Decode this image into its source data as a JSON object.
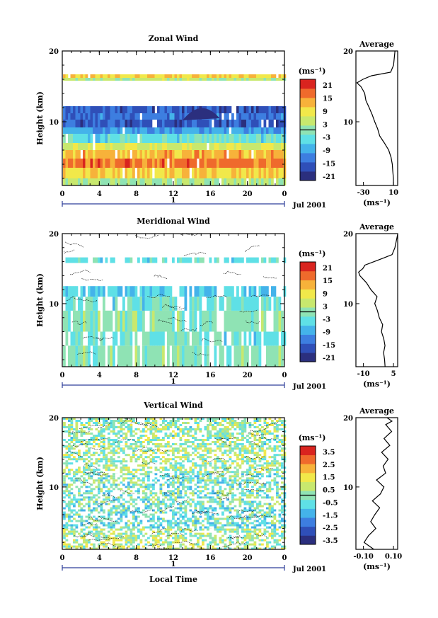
{
  "colors": {
    "wind_scale": [
      "#2b2f7e",
      "#2f4fb8",
      "#3d7ee0",
      "#44b3ea",
      "#5fe0e6",
      "#8fe3b4",
      "#c8e86e",
      "#f1e84a",
      "#f7b23a",
      "#ef6a2c",
      "#d9241f"
    ]
  },
  "panels": [
    {
      "title": "Zonal Wind",
      "ylabel": "Height (km)",
      "y_ticks": [
        "20",
        "10"
      ],
      "x_ticks": [
        "0",
        "4",
        "8",
        "12",
        "16",
        "20",
        "0"
      ],
      "xlabel": "",
      "day_label": "1",
      "month_label": "Jul 2001",
      "units_label": "(ms⁻¹)",
      "colorbar_ticks": [
        "21",
        "15",
        "9",
        "3",
        "-3",
        "-9",
        "-15",
        "-21"
      ],
      "avg_title": "Average",
      "avg_y_ticks": [
        "20",
        "10"
      ],
      "avg_x_ticks": [
        "-30",
        "10"
      ],
      "avg_units": "(ms⁻¹)"
    },
    {
      "title": "Meridional Wind",
      "ylabel": "Height (km)",
      "y_ticks": [
        "20",
        "10"
      ],
      "x_ticks": [
        "0",
        "4",
        "8",
        "12",
        "16",
        "20",
        "0"
      ],
      "xlabel": "",
      "day_label": "1",
      "month_label": "Jul 2001",
      "units_label": "(ms⁻¹)",
      "colorbar_ticks": [
        "21",
        "15",
        "9",
        "3",
        "-3",
        "-9",
        "-15",
        "-21"
      ],
      "avg_title": "Average",
      "avg_y_ticks": [
        "20",
        "10"
      ],
      "avg_x_ticks": [
        "-10",
        "5"
      ],
      "avg_units": "(ms⁻¹)"
    },
    {
      "title": "Vertical Wind",
      "ylabel": "Height (km)",
      "y_ticks": [
        "20",
        "10"
      ],
      "x_ticks": [
        "0",
        "4",
        "8",
        "12",
        "16",
        "20",
        "0"
      ],
      "xlabel": "Local Time",
      "day_label": "1",
      "month_label": "Jul 2001",
      "units_label": "(ms⁻¹)",
      "colorbar_ticks": [
        "3.5",
        "2.5",
        "1.5",
        "0.5",
        "-0.5",
        "-1.5",
        "-2.5",
        "-3.5"
      ],
      "avg_title": "Average",
      "avg_y_ticks": [
        "20",
        "10"
      ],
      "avg_x_ticks": [
        "-0.10",
        "0.10"
      ],
      "avg_units": "(ms⁻¹)"
    }
  ],
  "chart_data": [
    {
      "type": "heatmap",
      "title": "Zonal Wind",
      "xlabel": "",
      "ylabel": "Height (km)",
      "x_range_hours": [
        0,
        24
      ],
      "ylim": [
        1,
        20
      ],
      "color_scale": [
        -21,
        21
      ],
      "layers": [
        {
          "z_from": 1.0,
          "z_to": 2.0,
          "value": 2
        },
        {
          "z_from": 2.0,
          "z_to": 3.5,
          "value": 9
        },
        {
          "z_from": 3.5,
          "z_to": 4.8,
          "value": 15
        },
        {
          "z_from": 4.8,
          "z_to": 6.0,
          "value": 11
        },
        {
          "z_from": 6.0,
          "z_to": 7.0,
          "value": 5
        },
        {
          "z_from": 7.0,
          "z_to": 8.3,
          "value": -3
        },
        {
          "z_from": 8.3,
          "z_to": 9.2,
          "value": -9
        },
        {
          "z_from": 9.2,
          "z_to": 10.3,
          "value": -15
        },
        {
          "z_from": 10.3,
          "z_to": 11.2,
          "value": -12
        },
        {
          "z_from": 11.2,
          "z_to": 12.2,
          "value": -15
        },
        {
          "z_from": 15.8,
          "z_to": 16.2,
          "value": 3
        },
        {
          "z_from": 16.2,
          "z_to": 16.7,
          "value": 9
        }
      ],
      "average_profile": {
        "xlim": [
          -40,
          15
        ],
        "x": [
          10,
          9,
          8,
          8,
          7,
          3,
          -2,
          -8,
          -12,
          -15,
          -18,
          -22,
          -26,
          -28,
          -31,
          -34,
          -38,
          -30,
          -20,
          5,
          10,
          12
        ],
        "z": [
          1,
          2,
          3,
          4,
          5,
          6,
          7,
          8,
          9,
          10,
          11,
          12,
          13,
          14,
          14.5,
          15,
          15.5,
          16,
          16.5,
          17,
          18,
          20
        ]
      }
    },
    {
      "type": "heatmap",
      "title": "Meridional Wind",
      "xlabel": "",
      "ylabel": "Height (km)",
      "x_range_hours": [
        0,
        24
      ],
      "ylim": [
        1,
        20
      ],
      "color_scale": [
        -21,
        21
      ],
      "layers": [
        {
          "z_from": 1.0,
          "z_to": 4.0,
          "value": 0
        },
        {
          "z_from": 4.0,
          "z_to": 6.0,
          "value": -3
        },
        {
          "z_from": 6.0,
          "z_to": 9.0,
          "value": 0
        },
        {
          "z_from": 9.0,
          "z_to": 11.0,
          "value": -3
        },
        {
          "z_from": 11.0,
          "z_to": 12.5,
          "value": -6
        },
        {
          "z_from": 15.8,
          "z_to": 16.6,
          "value": -3
        }
      ],
      "average_profile": {
        "xlim": [
          -15,
          5
        ],
        "x": [
          -1,
          -1.5,
          -2,
          -1,
          -2,
          -3,
          -2,
          -4,
          -5,
          -6,
          -5,
          -8,
          -10,
          -13,
          -14,
          -12,
          -11,
          -6,
          -2,
          2,
          4,
          5
        ],
        "z": [
          1,
          2,
          3,
          4,
          5,
          6,
          7,
          8,
          9,
          10,
          11,
          12,
          13,
          14,
          14.5,
          15,
          15.5,
          16,
          16.5,
          17,
          18,
          20
        ]
      }
    },
    {
      "type": "heatmap",
      "title": "Vertical Wind",
      "xlabel": "Local Time",
      "ylabel": "Height (km)",
      "x_range_hours": [
        0,
        24
      ],
      "ylim": [
        1,
        20
      ],
      "color_scale": [
        -3.5,
        3.5
      ],
      "layers": [
        {
          "z_from": 1.0,
          "z_to": 4.0,
          "value": 0.3
        },
        {
          "z_from": 4.0,
          "z_to": 8.0,
          "value": -0.4
        },
        {
          "z_from": 8.0,
          "z_to": 12.0,
          "value": -0.2
        },
        {
          "z_from": 12.0,
          "z_to": 16.0,
          "value": 0.2
        },
        {
          "z_from": 16.0,
          "z_to": 20.0,
          "value": 0.1
        }
      ],
      "average_profile": {
        "xlim": [
          -0.13,
          0.12
        ],
        "x": [
          -0.02,
          -0.08,
          -0.05,
          -0.01,
          -0.04,
          -0.02,
          0.01,
          -0.03,
          0.02,
          0.04,
          -0.01,
          0.05,
          0.03,
          0.06,
          0.02,
          0.07,
          0.04,
          0.08,
          0.05,
          0.09,
          0.06
        ],
        "z": [
          1,
          2,
          3,
          4,
          5,
          6,
          7,
          8,
          9,
          10,
          11,
          12,
          13,
          14,
          15,
          16,
          17,
          18,
          19,
          19.5,
          20
        ]
      }
    }
  ]
}
